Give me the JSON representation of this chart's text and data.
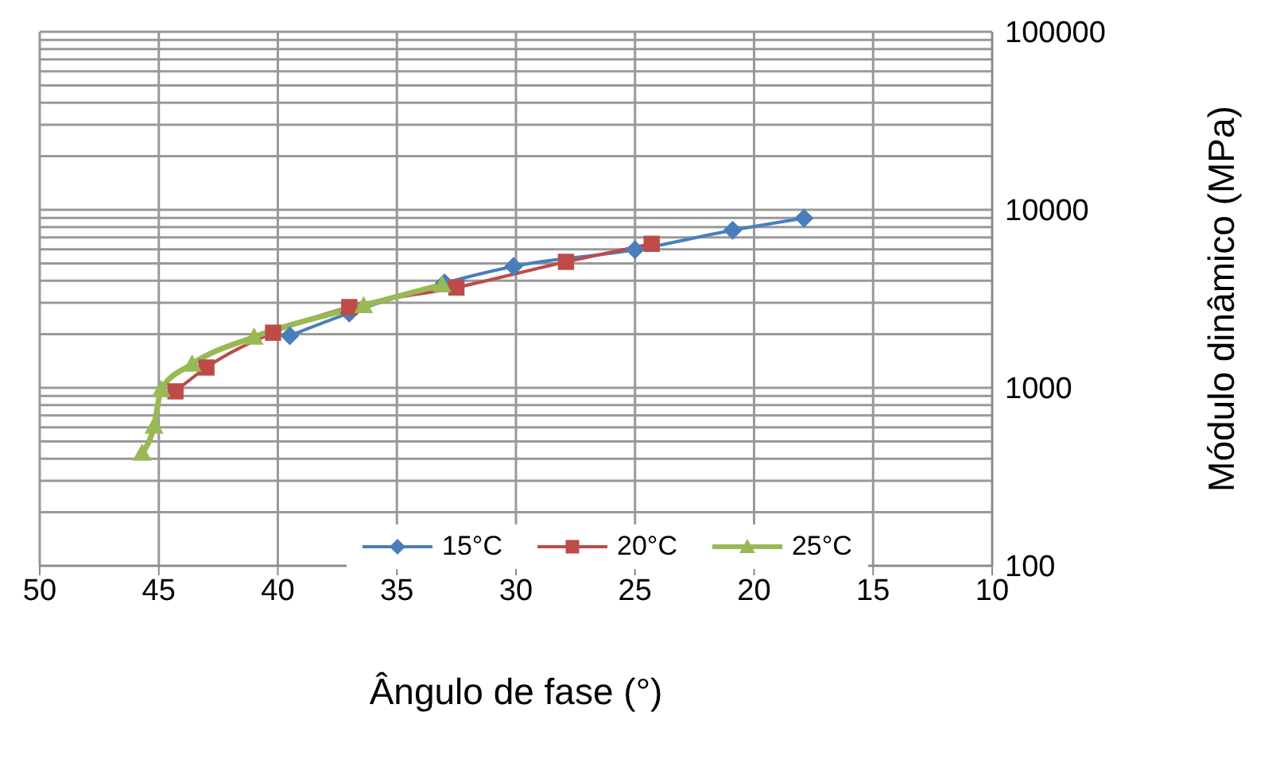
{
  "chart_data": {
    "type": "line",
    "xlabel": "Ângulo de fase (°)",
    "ylabel": "Módulo dinâmico (MPa)",
    "xlim": [
      50,
      10
    ],
    "xticks": [
      50,
      45,
      40,
      35,
      30,
      25,
      20,
      15,
      10
    ],
    "ylim": [
      100,
      100000
    ],
    "log": "y",
    "yticks": [
      100,
      {
        "value": 200,
        "label": null
      },
      {
        "value": 300,
        "label": null
      },
      {
        "value": 400,
        "label": null
      },
      {
        "value": 500,
        "label": null
      },
      {
        "value": 600,
        "label": null
      },
      {
        "value": 700,
        "label": null
      },
      {
        "value": 800,
        "label": null
      },
      {
        "value": 900,
        "label": null
      },
      1000,
      {
        "value": 2000,
        "label": null
      },
      {
        "value": 3000,
        "label": null
      },
      {
        "value": 4000,
        "label": null
      },
      {
        "value": 5000,
        "label": null
      },
      {
        "value": 6000,
        "label": null
      },
      {
        "value": 7000,
        "label": null
      },
      {
        "value": 8000,
        "label": null
      },
      {
        "value": 9000,
        "label": null
      },
      10000,
      {
        "value": 20000,
        "label": null
      },
      {
        "value": 30000,
        "label": null
      },
      {
        "value": 40000,
        "label": null
      },
      {
        "value": 50000,
        "label": null
      },
      {
        "value": 60000,
        "label": null
      },
      {
        "value": 70000,
        "label": null
      },
      {
        "value": 80000,
        "label": null
      },
      {
        "value": 90000,
        "label": null
      },
      100000
    ],
    "grid": true,
    "legend": "bottom right",
    "series": [
      {
        "name": "15°C",
        "color": "#4a7ebb",
        "marker": "diamond",
        "x": [
          39.5,
          37,
          33,
          30.1,
          25,
          20.9,
          17.9
        ],
        "values": [
          1960,
          2630,
          3880,
          4810,
          5960,
          7670,
          8970
        ]
      },
      {
        "name": "20°C",
        "color": "#be4b48",
        "marker": "square",
        "x": [
          44.3,
          43,
          40.2,
          37,
          32.5,
          27.9,
          24.3
        ],
        "values": [
          955,
          1300,
          2040,
          2840,
          3660,
          5100,
          6440
        ]
      },
      {
        "name": "25°C",
        "color": "#98b954",
        "marker": "triangle",
        "x": [
          45.7,
          45.2,
          44.9,
          43.6,
          41,
          36.4,
          33.1
        ],
        "values": [
          430,
          610,
          980,
          1360,
          1930,
          2900,
          3800
        ]
      }
    ]
  }
}
